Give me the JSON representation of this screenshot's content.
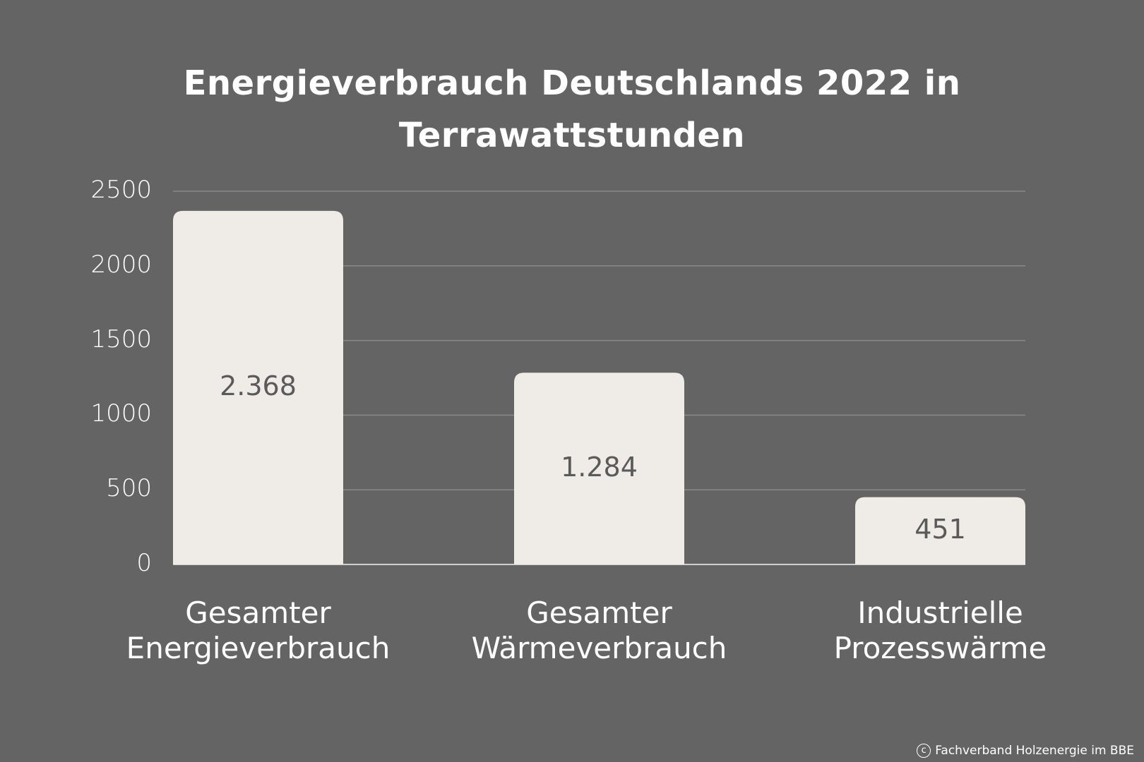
{
  "chart_data": {
    "type": "bar",
    "title": "Energieverbrauch Deutschlands 2022 in Terrawattstunden",
    "title_lines": [
      "Energieverbrauch Deutschlands 2022 in",
      "Terrawattstunden"
    ],
    "categories": [
      "Gesamter Energieverbrauch",
      "Gesamter Wärmeverbrauch",
      "Industrielle Prozesswärme"
    ],
    "category_lines": [
      [
        "Gesamter",
        "Energieverbrauch"
      ],
      [
        "Gesamter",
        "Wärmeverbrauch"
      ],
      [
        "Industrielle",
        "Prozesswärme"
      ]
    ],
    "values": [
      2368,
      1284,
      451
    ],
    "value_labels": [
      "2.368",
      "1.284",
      "451"
    ],
    "yticks": [
      "0",
      "500",
      "1000",
      "1500",
      "2000",
      "2500"
    ],
    "ylim": [
      0,
      2500
    ],
    "xlabel": "",
    "ylabel": "",
    "grid": true,
    "colors": {
      "background": "#646464",
      "bar": "#efebe7",
      "grid": "#8a8a8a",
      "text": "#ffffff",
      "value_text": "#5a5a5a"
    }
  },
  "footer": {
    "credit": "Fachverband Holzenergie im BBE",
    "icon": "copyright-icon"
  }
}
